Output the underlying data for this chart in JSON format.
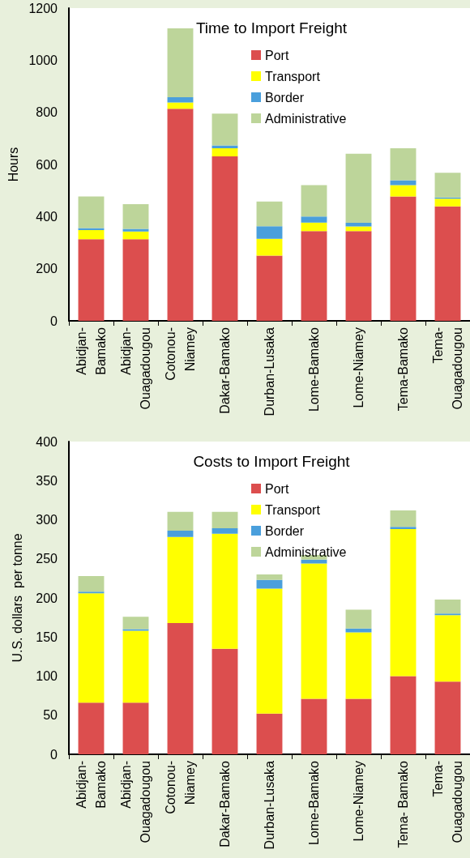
{
  "chart_data": [
    {
      "type": "bar",
      "stacked": true,
      "title": "Time to Import Freight",
      "ylabel": "Hours",
      "legend": "top",
      "grid": false,
      "categories": [
        "Abidjan-Bamako",
        "Abidjan-Ouagadougou",
        "Cotonou-Niamey",
        "Dakar-Bamako",
        "Durban-Lusaka",
        "Lome-Bamako",
        "Lome-Niamey",
        "Tema-Bamako",
        "Tema-Ouagadougou"
      ],
      "ylim": [
        0,
        1200
      ],
      "yticks": [
        0,
        200,
        400,
        600,
        800,
        1000,
        1200
      ],
      "series": [
        {
          "name": "Port",
          "color": "#dc4e4e",
          "values": [
            313,
            313,
            814,
            631,
            250,
            344,
            344,
            477,
            439
          ]
        },
        {
          "name": "Transport",
          "color": "#ffff00",
          "values": [
            35,
            30,
            24,
            31,
            65,
            33,
            18,
            44,
            30
          ]
        },
        {
          "name": "Border",
          "color": "#4a9fdc",
          "values": [
            8,
            10,
            20,
            11,
            48,
            23,
            14,
            18,
            4
          ]
        },
        {
          "name": "Administrative",
          "color": "#bdd59a",
          "values": [
            121,
            95,
            264,
            122,
            95,
            121,
            265,
            123,
            95
          ]
        }
      ]
    },
    {
      "type": "bar",
      "stacked": true,
      "title": "Costs to Import Freight",
      "ylabel": "U.S. dollars  per tonne",
      "legend": "top",
      "grid": false,
      "categories": [
        "Abidjan-Bamako",
        "Abidjan-Ouagadougou",
        "Cotonou-Niamey",
        "Dakar-Bamako",
        "Durban-Lusaka",
        "Lome-Bamako",
        "Lome-Niamey",
        "Tema- Bamako",
        "Tema-Ouagadougou"
      ],
      "ylim": [
        0,
        400
      ],
      "yticks": [
        0,
        50,
        100,
        150,
        200,
        250,
        300,
        350,
        400
      ],
      "series": [
        {
          "name": "Port",
          "color": "#dc4e4e",
          "values": [
            66,
            66,
            168,
            135,
            52,
            71,
            71,
            100,
            93
          ]
        },
        {
          "name": "Transport",
          "color": "#ffff00",
          "values": [
            140,
            92,
            110,
            147,
            160,
            173,
            85,
            188,
            85
          ]
        },
        {
          "name": "Border",
          "color": "#4a9fdc",
          "values": [
            2,
            2,
            8,
            7,
            11,
            5,
            5,
            3,
            2
          ]
        },
        {
          "name": "Administrative",
          "color": "#bdd59a",
          "values": [
            20,
            16,
            24,
            21,
            7,
            6,
            24,
            21,
            18
          ]
        }
      ]
    }
  ]
}
